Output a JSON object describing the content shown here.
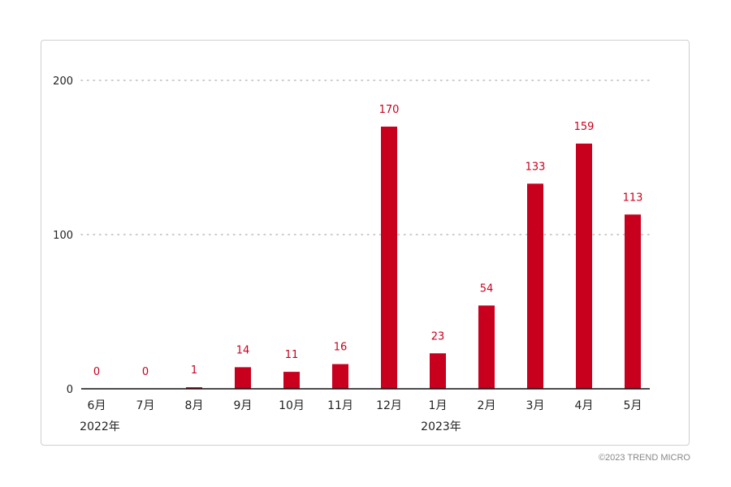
{
  "chart_data": {
    "type": "bar",
    "categories": [
      "6月",
      "7月",
      "8月",
      "9月",
      "10月",
      "11月",
      "12月",
      "1月",
      "2月",
      "3月",
      "4月",
      "5月"
    ],
    "values": [
      0,
      0,
      1,
      14,
      11,
      16,
      170,
      23,
      54,
      133,
      159,
      113
    ],
    "year_labels": [
      {
        "after_category_index": 0,
        "label": "2022年"
      },
      {
        "after_category_index": 7,
        "label": "2023年"
      }
    ],
    "yticks": [
      0,
      100,
      200
    ],
    "ylim": [
      0,
      200
    ],
    "grid": true,
    "data_labels": true
  },
  "colors": {
    "bar": "#c8001e",
    "label": "#c8001e",
    "grid": "#bbbbbb",
    "axis": "#111111",
    "text": "#222222"
  },
  "footer": {
    "copyright": "©2023 TREND MICRO"
  }
}
